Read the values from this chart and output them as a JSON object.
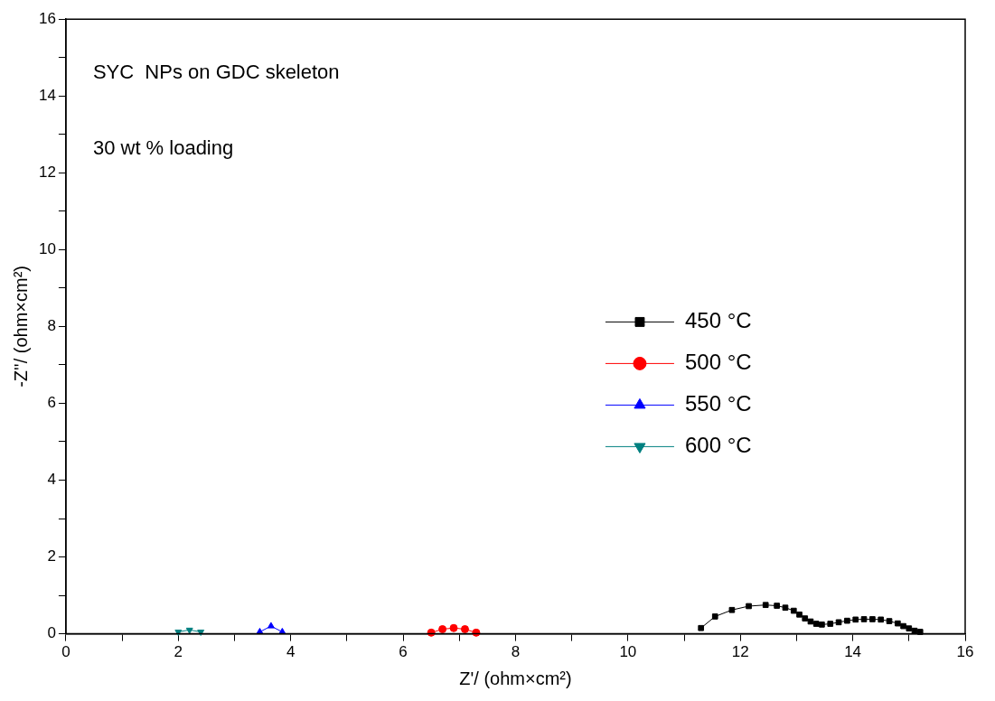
{
  "chart_data": {
    "type": "line",
    "xlabel": "Z'/ (ohm×cm²)",
    "ylabel": "-Z''/ (ohm×cm²)",
    "annotations": [
      "SYC  NPs on GDC skeleton",
      "30 wt % loading"
    ],
    "xlim": [
      0,
      16
    ],
    "ylim": [
      0,
      16
    ],
    "xticks": [
      0,
      {
        "value": 1,
        "label": null
      },
      2,
      {
        "value": 3,
        "label": null
      },
      4,
      {
        "value": 5,
        "label": null
      },
      6,
      {
        "value": 7,
        "label": null
      },
      8,
      {
        "value": 9,
        "label": null
      },
      10,
      {
        "value": 11,
        "label": null
      },
      12,
      {
        "value": 13,
        "label": null
      },
      14,
      {
        "value": 15,
        "label": null
      },
      16
    ],
    "yticks": [
      0,
      {
        "value": 1,
        "label": null
      },
      2,
      {
        "value": 3,
        "label": null
      },
      4,
      {
        "value": 5,
        "label": null
      },
      6,
      {
        "value": 7,
        "label": null
      },
      8,
      {
        "value": 9,
        "label": null
      },
      10,
      {
        "value": 11,
        "label": null
      },
      12,
      {
        "value": 13,
        "label": null
      },
      14,
      {
        "value": 15,
        "label": null
      },
      16
    ],
    "legend": "right",
    "grid": false,
    "series": [
      {
        "name": "450 °C",
        "color": "#000000",
        "marker": "square",
        "x": [
          11.3,
          11.55,
          11.85,
          12.15,
          12.45,
          12.65,
          12.8,
          12.95,
          13.05,
          13.15,
          13.25,
          13.35,
          13.45,
          13.6,
          13.75,
          13.9,
          14.05,
          14.2,
          14.35,
          14.5,
          14.65,
          14.8,
          14.9,
          15.0,
          15.1,
          15.2
        ],
        "values": [
          0.15,
          0.45,
          0.62,
          0.72,
          0.75,
          0.73,
          0.68,
          0.6,
          0.5,
          0.4,
          0.32,
          0.26,
          0.24,
          0.26,
          0.3,
          0.34,
          0.37,
          0.38,
          0.38,
          0.37,
          0.33,
          0.27,
          0.2,
          0.14,
          0.08,
          0.05
        ]
      },
      {
        "name": "500 °C",
        "color": "#ff0000",
        "marker": "circle",
        "x": [
          6.5,
          6.7,
          6.9,
          7.1,
          7.3
        ],
        "values": [
          0.03,
          0.12,
          0.15,
          0.12,
          0.03
        ]
      },
      {
        "name": "550 °C",
        "color": "#0000ff",
        "marker": "triangle",
        "x": [
          3.45,
          3.65,
          3.85
        ],
        "values": [
          0.05,
          0.2,
          0.05
        ]
      },
      {
        "name": "600 °C",
        "color": "#008080",
        "marker": "triangle_down",
        "x": [
          2.0,
          2.2,
          2.4
        ],
        "values": [
          0.05,
          0.1,
          0.05
        ]
      }
    ]
  }
}
